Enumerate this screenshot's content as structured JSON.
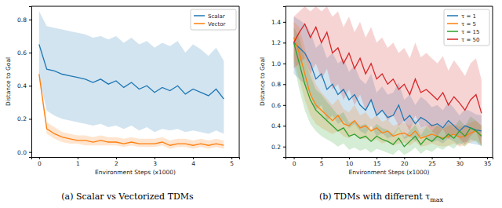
{
  "chart_data": [
    {
      "type": "line",
      "caption": "(a) Scalar vs Vectorized TDMs",
      "x_label": "Environment Steps (x1000)",
      "y_label": "Distance to Goal",
      "x": [
        0,
        0.2,
        0.4,
        0.6,
        0.8,
        1.0,
        1.2,
        1.4,
        1.6,
        1.8,
        2.0,
        2.2,
        2.4,
        2.6,
        2.8,
        3.0,
        3.2,
        3.4,
        3.6,
        3.8,
        4.0,
        4.2,
        4.4,
        4.6,
        4.8
      ],
      "series": [
        {
          "name": "Scalar",
          "color": "#1f77b4",
          "values": [
            0.65,
            0.5,
            0.49,
            0.47,
            0.46,
            0.45,
            0.44,
            0.42,
            0.44,
            0.41,
            0.43,
            0.39,
            0.42,
            0.38,
            0.4,
            0.36,
            0.39,
            0.37,
            0.4,
            0.35,
            0.38,
            0.36,
            0.34,
            0.38,
            0.32
          ],
          "lower": [
            0.45,
            0.25,
            0.22,
            0.2,
            0.19,
            0.18,
            0.17,
            0.16,
            0.17,
            0.15,
            0.16,
            0.14,
            0.16,
            0.13,
            0.15,
            0.12,
            0.14,
            0.13,
            0.14,
            0.12,
            0.13,
            0.12,
            0.11,
            0.13,
            0.11
          ],
          "upper": [
            0.85,
            0.76,
            0.75,
            0.74,
            0.73,
            0.72,
            0.71,
            0.69,
            0.7,
            0.68,
            0.7,
            0.66,
            0.69,
            0.65,
            0.67,
            0.63,
            0.66,
            0.64,
            0.67,
            0.6,
            0.65,
            0.62,
            0.58,
            0.63,
            0.55
          ]
        },
        {
          "name": "Vector",
          "color": "#ff7f0e",
          "values": [
            0.47,
            0.14,
            0.11,
            0.09,
            0.08,
            0.07,
            0.07,
            0.06,
            0.07,
            0.06,
            0.06,
            0.05,
            0.06,
            0.05,
            0.05,
            0.05,
            0.06,
            0.04,
            0.05,
            0.05,
            0.04,
            0.05,
            0.04,
            0.05,
            0.04
          ],
          "lower": [
            0.44,
            0.11,
            0.08,
            0.06,
            0.05,
            0.05,
            0.04,
            0.04,
            0.04,
            0.04,
            0.04,
            0.03,
            0.04,
            0.03,
            0.03,
            0.03,
            0.04,
            0.02,
            0.03,
            0.03,
            0.02,
            0.03,
            0.02,
            0.03,
            0.02
          ],
          "upper": [
            0.5,
            0.18,
            0.15,
            0.12,
            0.11,
            0.1,
            0.1,
            0.09,
            0.1,
            0.09,
            0.09,
            0.08,
            0.09,
            0.08,
            0.08,
            0.08,
            0.09,
            0.07,
            0.08,
            0.08,
            0.07,
            0.08,
            0.07,
            0.08,
            0.07
          ]
        }
      ],
      "xlim": [
        -0.2,
        5.2
      ],
      "ylim": [
        -0.03,
        0.88
      ],
      "xticks": [
        0,
        1,
        2,
        3,
        4,
        5
      ],
      "yticks": [
        {
          "value": 0,
          "label": "0.0"
        },
        0.2,
        0.4,
        0.6,
        0.8
      ],
      "legend": "upper right"
    },
    {
      "type": "line",
      "caption": "(b) TDMs with different τ",
      "caption_subscript": "max",
      "x_label": "Environment Steps (x1000)",
      "y_label": "Distance to Goal",
      "x": [
        0,
        1,
        2,
        3,
        4,
        5,
        6,
        7,
        8,
        9,
        10,
        11,
        12,
        13,
        14,
        15,
        16,
        17,
        18,
        19,
        20,
        21,
        22,
        23,
        24,
        25,
        26,
        27,
        28,
        29,
        30,
        31,
        32,
        33,
        34
      ],
      "series": [
        {
          "name": "τ = 1",
          "color": "#1f77b4",
          "values": [
            1.2,
            1.15,
            1.1,
            1.0,
            0.85,
            0.9,
            0.75,
            0.8,
            0.7,
            0.75,
            0.65,
            0.7,
            0.6,
            0.55,
            0.65,
            0.5,
            0.55,
            0.48,
            0.5,
            0.6,
            0.45,
            0.5,
            0.42,
            0.48,
            0.45,
            0.4,
            0.42,
            0.38,
            0.45,
            0.4,
            0.35,
            0.4,
            0.38,
            0.36,
            0.35
          ],
          "lower": [
            0.9,
            0.85,
            0.8,
            0.7,
            0.55,
            0.6,
            0.45,
            0.5,
            0.42,
            0.45,
            0.38,
            0.42,
            0.35,
            0.32,
            0.4,
            0.3,
            0.33,
            0.28,
            0.3,
            0.38,
            0.27,
            0.3,
            0.25,
            0.3,
            0.28,
            0.24,
            0.26,
            0.23,
            0.28,
            0.25,
            0.21,
            0.25,
            0.23,
            0.22,
            0.21
          ],
          "upper": [
            1.45,
            1.42,
            1.38,
            1.3,
            1.15,
            1.2,
            1.05,
            1.1,
            1.0,
            1.05,
            0.92,
            0.98,
            0.85,
            0.8,
            0.9,
            0.72,
            0.78,
            0.7,
            0.72,
            0.82,
            0.65,
            0.7,
            0.6,
            0.68,
            0.64,
            0.58,
            0.6,
            0.55,
            0.63,
            0.57,
            0.5,
            0.56,
            0.54,
            0.51,
            0.5
          ]
        },
        {
          "name": "τ = 5",
          "color": "#ff7f0e",
          "values": [
            1.25,
            1.1,
            0.9,
            0.7,
            0.6,
            0.55,
            0.5,
            0.45,
            0.5,
            0.42,
            0.4,
            0.45,
            0.38,
            0.4,
            0.35,
            0.38,
            0.33,
            0.35,
            0.3,
            0.32,
            0.33,
            0.3,
            0.35,
            0.28,
            0.3,
            0.32,
            0.3,
            0.28,
            0.3,
            0.32,
            0.29,
            0.3,
            0.33,
            0.35,
            0.3
          ],
          "lower": [
            1.05,
            0.85,
            0.65,
            0.5,
            0.42,
            0.38,
            0.35,
            0.32,
            0.35,
            0.3,
            0.28,
            0.32,
            0.27,
            0.28,
            0.25,
            0.27,
            0.23,
            0.25,
            0.21,
            0.23,
            0.24,
            0.21,
            0.25,
            0.2,
            0.21,
            0.23,
            0.21,
            0.2,
            0.21,
            0.23,
            0.2,
            0.21,
            0.24,
            0.26,
            0.21
          ],
          "upper": [
            1.4,
            1.35,
            1.15,
            0.95,
            0.8,
            0.72,
            0.66,
            0.6,
            0.66,
            0.56,
            0.53,
            0.6,
            0.5,
            0.53,
            0.46,
            0.5,
            0.44,
            0.46,
            0.4,
            0.42,
            0.43,
            0.4,
            0.46,
            0.37,
            0.4,
            0.42,
            0.4,
            0.37,
            0.4,
            0.42,
            0.39,
            0.4,
            0.43,
            0.45,
            0.4
          ]
        },
        {
          "name": "τ = 15",
          "color": "#2ca02c",
          "values": [
            1.2,
            1.0,
            0.8,
            0.65,
            0.55,
            0.5,
            0.45,
            0.4,
            0.35,
            0.38,
            0.3,
            0.32,
            0.28,
            0.3,
            0.25,
            0.3,
            0.27,
            0.25,
            0.22,
            0.28,
            0.2,
            0.25,
            0.3,
            0.22,
            0.28,
            0.25,
            0.3,
            0.27,
            0.32,
            0.28,
            0.35,
            0.3,
            0.38,
            0.35,
            0.3
          ],
          "lower": [
            1.0,
            0.75,
            0.55,
            0.42,
            0.35,
            0.3,
            0.27,
            0.24,
            0.2,
            0.23,
            0.17,
            0.19,
            0.16,
            0.18,
            0.14,
            0.18,
            0.16,
            0.14,
            0.12,
            0.17,
            0.12,
            0.15,
            0.19,
            0.13,
            0.17,
            0.15,
            0.19,
            0.17,
            0.21,
            0.18,
            0.24,
            0.2,
            0.27,
            0.25,
            0.2
          ],
          "upper": [
            1.35,
            1.25,
            1.05,
            0.88,
            0.75,
            0.7,
            0.63,
            0.57,
            0.5,
            0.53,
            0.43,
            0.45,
            0.4,
            0.42,
            0.36,
            0.42,
            0.38,
            0.36,
            0.32,
            0.39,
            0.29,
            0.35,
            0.41,
            0.31,
            0.39,
            0.35,
            0.41,
            0.37,
            0.43,
            0.38,
            0.46,
            0.4,
            0.49,
            0.45,
            0.4
          ]
        },
        {
          "name": "τ = 50",
          "color": "#d62728",
          "values": [
            1.2,
            1.3,
            1.38,
            1.25,
            1.35,
            1.2,
            1.3,
            1.1,
            1.15,
            1.0,
            1.1,
            0.95,
            1.05,
            0.9,
            1.0,
            0.85,
            0.9,
            0.8,
            0.85,
            0.75,
            0.8,
            0.7,
            0.85,
            0.72,
            0.75,
            0.7,
            0.65,
            0.72,
            0.6,
            0.68,
            0.62,
            0.55,
            0.65,
            0.7,
            0.52
          ],
          "lower": [
            0.95,
            1.0,
            1.05,
            0.9,
            1.0,
            0.85,
            0.95,
            0.75,
            0.8,
            0.65,
            0.75,
            0.6,
            0.7,
            0.55,
            0.65,
            0.5,
            0.55,
            0.45,
            0.5,
            0.4,
            0.45,
            0.35,
            0.5,
            0.38,
            0.4,
            0.35,
            0.3,
            0.37,
            0.27,
            0.33,
            0.28,
            0.22,
            0.3,
            0.35,
            0.2
          ],
          "upper": [
            1.45,
            1.5,
            1.55,
            1.5,
            1.55,
            1.5,
            1.55,
            1.45,
            1.5,
            1.35,
            1.45,
            1.3,
            1.4,
            1.25,
            1.35,
            1.2,
            1.25,
            1.15,
            1.2,
            1.1,
            1.15,
            1.05,
            1.2,
            1.06,
            1.1,
            1.05,
            1.0,
            1.07,
            0.93,
            1.03,
            0.96,
            0.88,
            1.0,
            1.05,
            0.84
          ]
        }
      ],
      "xlim": [
        -1.5,
        36
      ],
      "ylim": [
        0.1,
        1.55
      ],
      "xticks": [
        0,
        5,
        10,
        15,
        20,
        25,
        30,
        35
      ],
      "yticks": [
        0.2,
        0.4,
        0.6,
        0.8,
        {
          "value": 1,
          "label": "1.0"
        },
        1.2,
        1.4
      ],
      "legend": "upper right"
    }
  ]
}
